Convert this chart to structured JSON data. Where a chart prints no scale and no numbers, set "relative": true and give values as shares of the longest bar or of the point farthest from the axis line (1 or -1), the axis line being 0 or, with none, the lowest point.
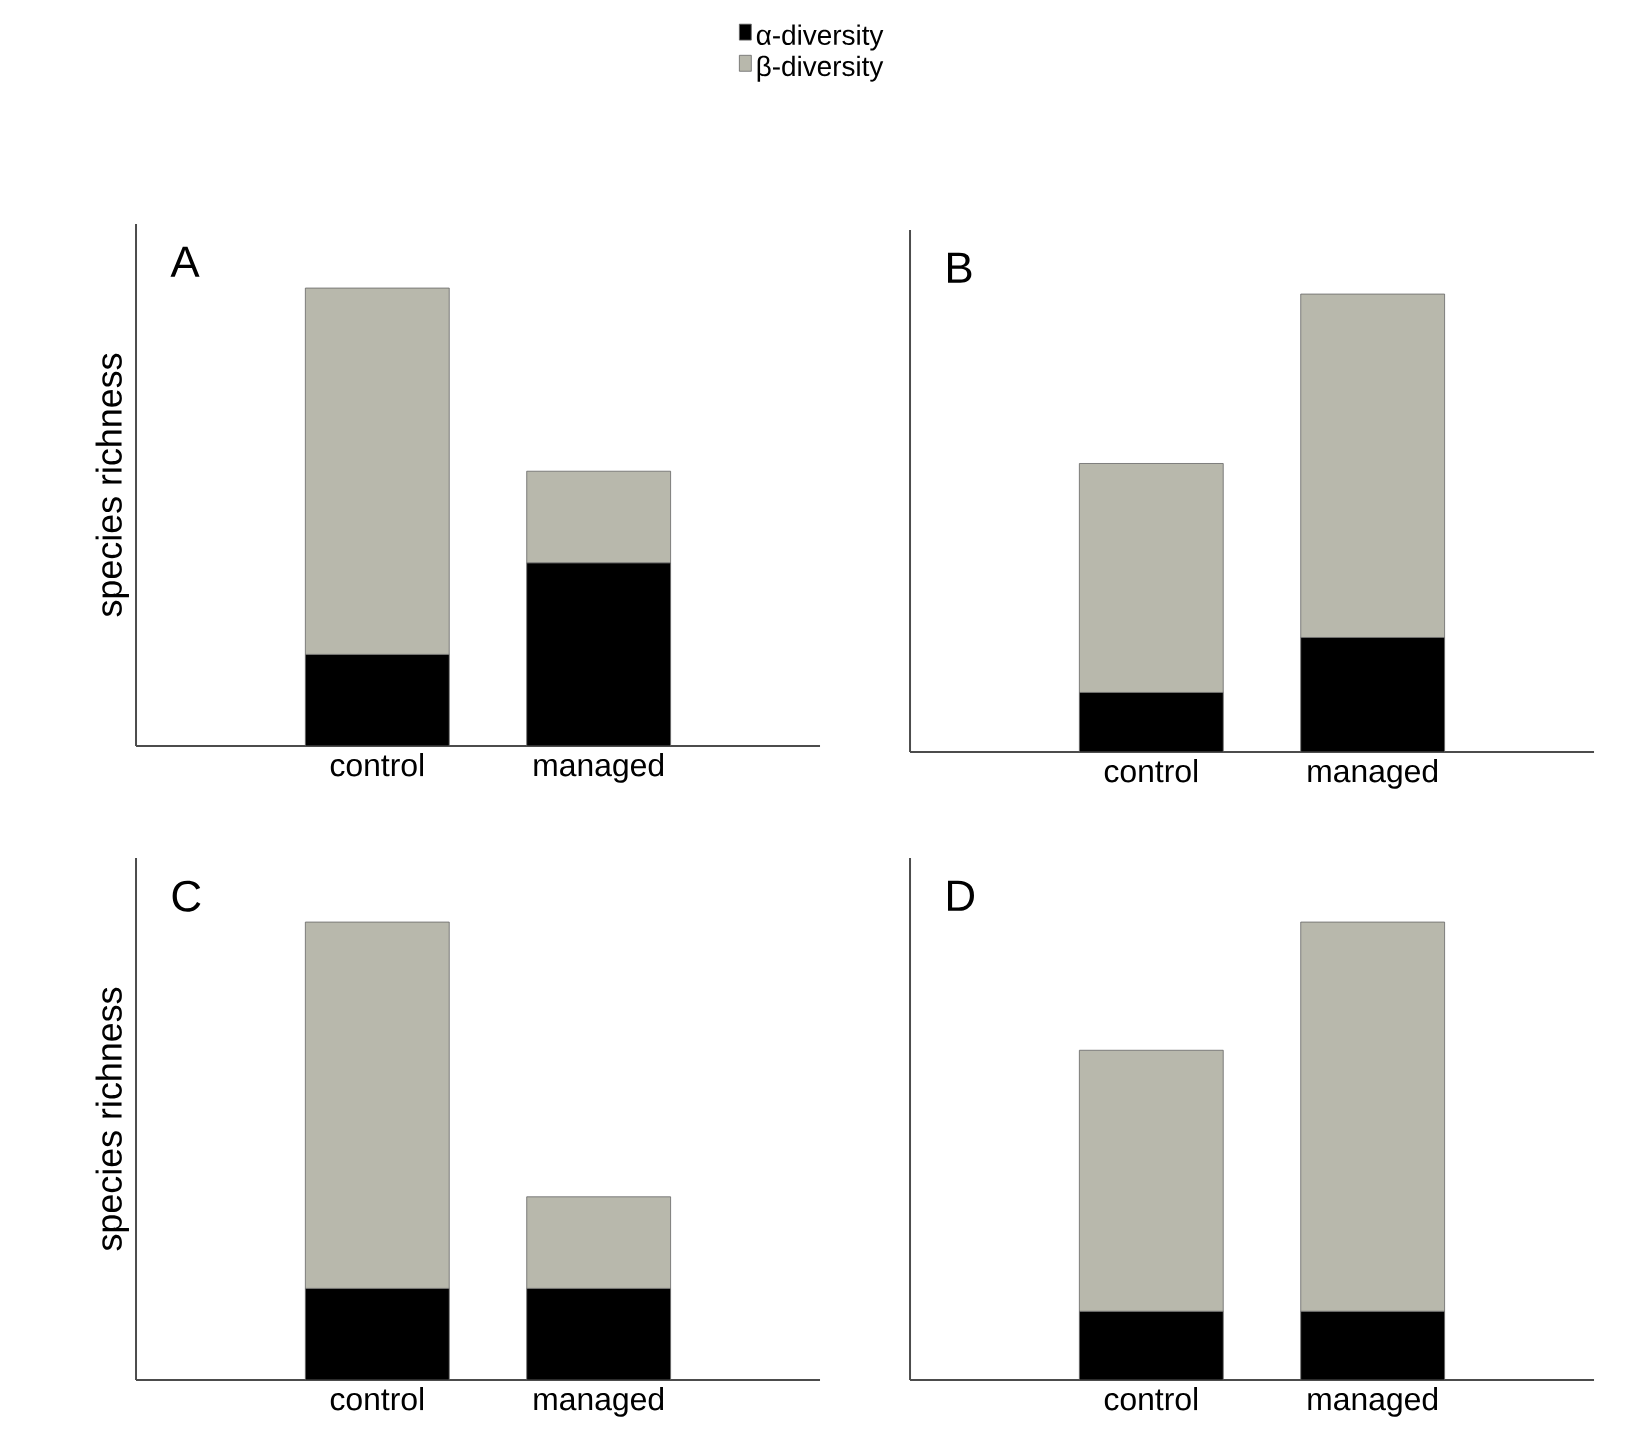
{
  "chart_data": [
    {
      "type": "bar",
      "title": "A",
      "ylabel": "species richness",
      "categories": [
        "control",
        "managed"
      ],
      "stacked": true,
      "relative": true,
      "legend": "top",
      "series": [
        {
          "name": "α-diversity",
          "color": "#000000",
          "values": [
            0.2,
            0.4
          ]
        },
        {
          "name": "β-diversity",
          "color": "#b8b8ac",
          "values": [
            0.8,
            0.2
          ]
        }
      ]
    },
    {
      "type": "bar",
      "title": "B",
      "categories": [
        "control",
        "managed"
      ],
      "stacked": true,
      "relative": true,
      "series": [
        {
          "color": "#000000",
          "values": [
            0.13,
            0.25
          ]
        },
        {
          "color": "#b8b8ac",
          "values": [
            0.5,
            0.75
          ]
        }
      ]
    },
    {
      "type": "bar",
      "title": "C",
      "ylabel": "species richness",
      "categories": [
        "control",
        "managed"
      ],
      "stacked": true,
      "relative": true,
      "series": [
        {
          "color": "#000000",
          "values": [
            0.2,
            0.2
          ]
        },
        {
          "color": "#b8b8ac",
          "values": [
            0.8,
            0.2
          ]
        }
      ]
    },
    {
      "type": "bar",
      "title": "D",
      "categories": [
        "control",
        "managed"
      ],
      "stacked": true,
      "relative": true,
      "series": [
        {
          "color": "#000000",
          "values": [
            0.15,
            0.15
          ]
        },
        {
          "color": "#b8b8ac",
          "values": [
            0.57,
            0.85
          ]
        }
      ]
    }
  ]
}
